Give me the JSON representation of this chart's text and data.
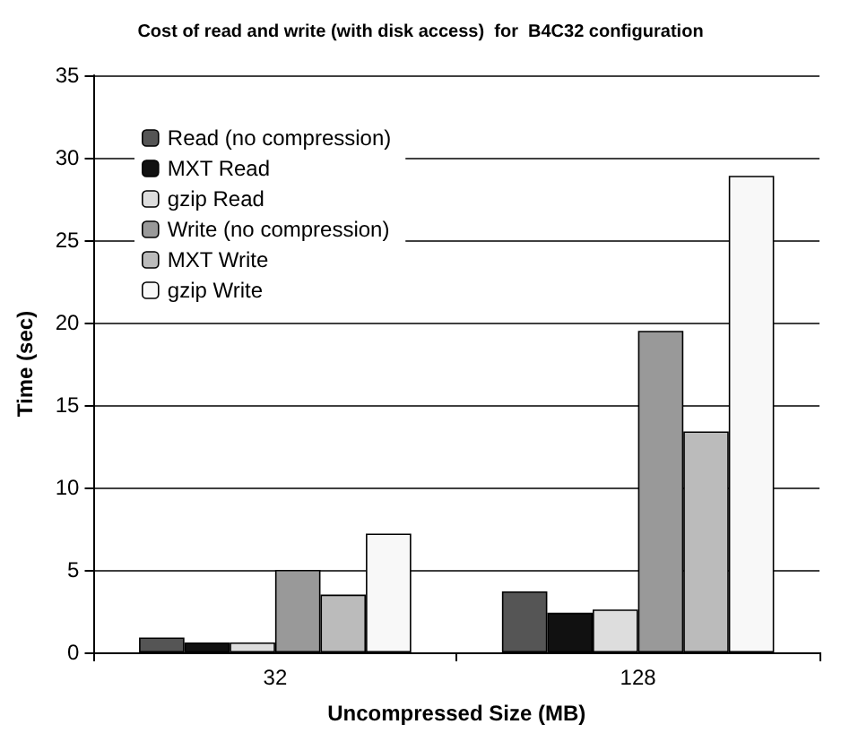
{
  "chart_data": {
    "type": "bar",
    "title": "Cost of read and write (with disk access)  for  B4C32 configuration",
    "xlabel": "Uncompressed Size (MB)",
    "ylabel": "Time (sec)",
    "categories": [
      "32",
      "128"
    ],
    "series": [
      {
        "name": "Read (no compression)",
        "color": "#555555",
        "values": [
          0.9,
          3.7
        ]
      },
      {
        "name": "MXT Read",
        "color": "#111111",
        "values": [
          0.6,
          2.4
        ]
      },
      {
        "name": "gzip Read",
        "color": "#dddddd",
        "values": [
          0.6,
          2.6
        ]
      },
      {
        "name": "Write (no compression)",
        "color": "#999999",
        "values": [
          5.0,
          19.5
        ]
      },
      {
        "name": "MXT Write",
        "color": "#bbbbbb",
        "values": [
          3.5,
          13.4
        ]
      },
      {
        "name": "gzip Write",
        "color": "#f8f8f8",
        "values": [
          7.2,
          28.9
        ]
      }
    ],
    "ylim": [
      0,
      35
    ],
    "yticks": [
      0,
      5,
      10,
      15,
      20,
      25,
      30,
      35
    ],
    "grid": "y",
    "legend": "top left"
  }
}
